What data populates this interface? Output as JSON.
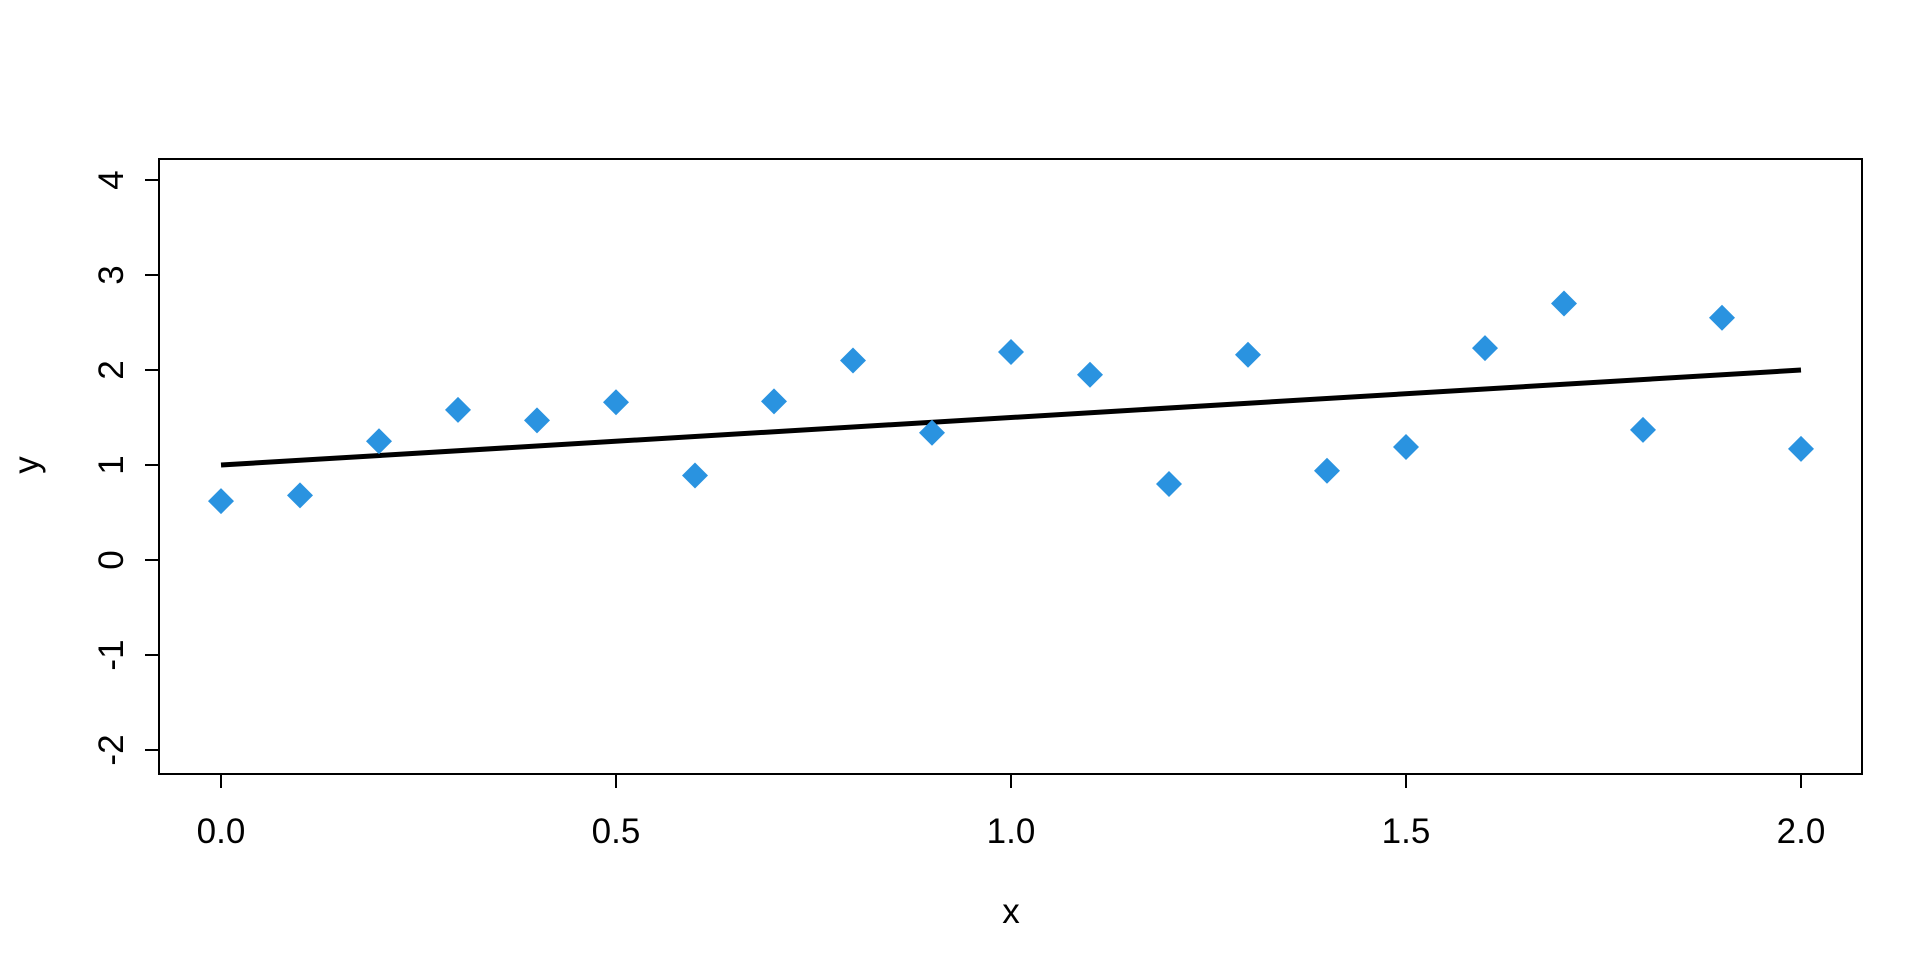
{
  "chart_data": {
    "type": "scatter",
    "title": "",
    "xlabel": "x",
    "ylabel": "y",
    "xlim": [
      0.0,
      2.0
    ],
    "ylim": [
      -2,
      4
    ],
    "xticks": [
      "0.0",
      "0.5",
      "1.0",
      "1.5",
      "2.0"
    ],
    "xtick_values": [
      0.0,
      0.5,
      1.0,
      1.5,
      2.0
    ],
    "yticks": [
      "-2",
      "-1",
      "0",
      "1",
      "2",
      "3",
      "4"
    ],
    "ytick_values": [
      -2,
      -1,
      0,
      1,
      2,
      3,
      4
    ],
    "grid": false,
    "legend": "none",
    "points": {
      "marker": "diamond",
      "color": "#2A93E0",
      "x": [
        0.0,
        0.1,
        0.2,
        0.3,
        0.4,
        0.5,
        0.6,
        0.7,
        0.8,
        0.9,
        1.0,
        1.1,
        1.2,
        1.3,
        1.4,
        1.5,
        1.6,
        1.7,
        1.8,
        1.9,
        2.0
      ],
      "y": [
        0.62,
        0.68,
        1.25,
        1.58,
        1.47,
        1.66,
        0.89,
        1.67,
        2.1,
        1.34,
        2.19,
        1.95,
        0.8,
        2.16,
        0.94,
        1.19,
        2.23,
        2.7,
        1.37,
        2.55,
        1.17
      ]
    },
    "line": {
      "color": "#000000",
      "x": [
        0.0,
        2.0
      ],
      "y": [
        1.0,
        2.0
      ]
    }
  }
}
